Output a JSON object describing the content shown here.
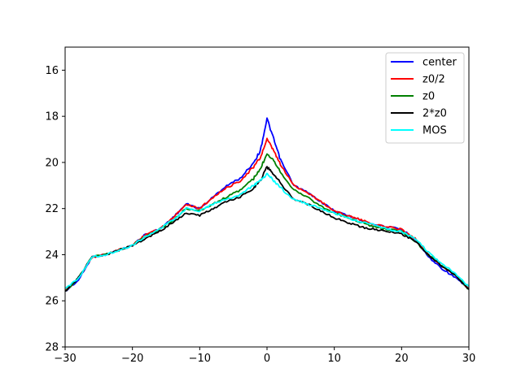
{
  "chart_data": {
    "type": "line",
    "title": "",
    "xlabel": "",
    "ylabel": "",
    "xlim": [
      -30,
      30
    ],
    "ylim": [
      28,
      15
    ],
    "y_inverted": true,
    "grid": false,
    "legend_position": "top-right",
    "x_ticks": [
      -30,
      -20,
      -10,
      0,
      10,
      20,
      30
    ],
    "x_tick_labels": [
      "−30",
      "−20",
      "−10",
      "0",
      "10",
      "20",
      "30"
    ],
    "y_ticks": [
      16,
      18,
      20,
      22,
      24,
      26,
      28
    ],
    "y_tick_labels": [
      "16",
      "18",
      "20",
      "22",
      "24",
      "26",
      "28"
    ],
    "x": [
      -30,
      -28,
      -26,
      -24,
      -22,
      -20,
      -18,
      -16,
      -14,
      -12,
      -10,
      -8,
      -6,
      -4,
      -2,
      -1,
      0,
      1,
      2,
      4,
      6,
      8,
      10,
      12,
      14,
      16,
      18,
      20,
      22,
      24,
      26,
      28,
      30
    ],
    "series": [
      {
        "name": "center",
        "color": "#0000ff",
        "values": [
          25.6,
          25.1,
          24.1,
          24.0,
          23.8,
          23.6,
          23.1,
          22.9,
          22.4,
          21.8,
          22.0,
          21.5,
          21.0,
          20.7,
          20.0,
          19.5,
          18.1,
          19.0,
          19.9,
          21.0,
          21.3,
          21.7,
          22.1,
          22.3,
          22.5,
          22.7,
          22.8,
          22.9,
          23.3,
          24.1,
          24.6,
          25.0,
          25.5
        ]
      },
      {
        "name": "z0/2",
        "color": "#ff0000",
        "values": [
          25.6,
          25.0,
          24.1,
          24.0,
          23.8,
          23.6,
          23.1,
          22.9,
          22.4,
          21.8,
          22.0,
          21.5,
          21.1,
          20.8,
          20.2,
          19.8,
          19.0,
          19.5,
          20.1,
          21.0,
          21.3,
          21.7,
          22.1,
          22.3,
          22.5,
          22.7,
          22.8,
          22.9,
          23.3,
          24.0,
          24.5,
          24.9,
          25.5
        ]
      },
      {
        "name": "z0",
        "color": "#008000",
        "values": [
          25.6,
          25.0,
          24.1,
          24.0,
          23.8,
          23.6,
          23.2,
          22.9,
          22.5,
          22.0,
          22.1,
          21.8,
          21.5,
          21.2,
          20.7,
          20.3,
          19.6,
          19.9,
          20.4,
          21.2,
          21.5,
          21.9,
          22.2,
          22.4,
          22.6,
          22.8,
          22.9,
          23.0,
          23.4,
          24.0,
          24.5,
          24.9,
          25.5
        ]
      },
      {
        "name": "2*z0",
        "color": "#000000",
        "values": [
          25.6,
          25.0,
          24.1,
          24.0,
          23.8,
          23.6,
          23.3,
          23.0,
          22.6,
          22.2,
          22.3,
          22.0,
          21.7,
          21.5,
          21.1,
          20.8,
          20.2,
          20.5,
          20.9,
          21.6,
          21.8,
          22.1,
          22.4,
          22.6,
          22.8,
          22.9,
          23.0,
          23.1,
          23.4,
          24.0,
          24.5,
          24.9,
          25.5
        ]
      },
      {
        "name": "MOS",
        "color": "#00ffff",
        "values": [
          25.5,
          25.0,
          24.1,
          24.0,
          23.8,
          23.6,
          23.2,
          22.9,
          22.5,
          22.0,
          22.1,
          21.8,
          21.6,
          21.4,
          21.0,
          20.8,
          20.5,
          20.8,
          21.1,
          21.6,
          21.8,
          22.0,
          22.2,
          22.4,
          22.6,
          22.7,
          22.9,
          23.0,
          23.3,
          23.9,
          24.4,
          24.8,
          25.4
        ]
      }
    ]
  }
}
